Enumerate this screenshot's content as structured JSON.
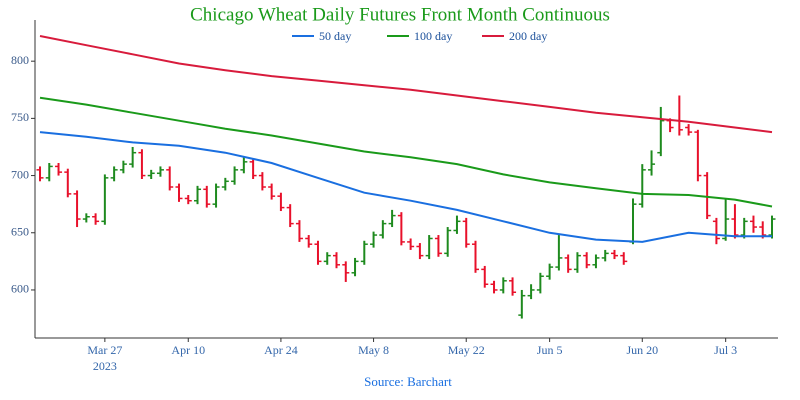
{
  "chart_data": {
    "type": "ohlc",
    "title": "Chicago Wheat Daily Futures Front Month Continuous",
    "source": "Source: Barchart",
    "x_year_label": "2023",
    "x": [
      "2023-03-16",
      "2023-03-17",
      "2023-03-20",
      "2023-03-21",
      "2023-03-22",
      "2023-03-23",
      "2023-03-24",
      "2023-03-27",
      "2023-03-28",
      "2023-03-29",
      "2023-03-30",
      "2023-03-31",
      "2023-04-03",
      "2023-04-04",
      "2023-04-05",
      "2023-04-06",
      "2023-04-10",
      "2023-04-11",
      "2023-04-12",
      "2023-04-13",
      "2023-04-14",
      "2023-04-17",
      "2023-04-18",
      "2023-04-19",
      "2023-04-20",
      "2023-04-21",
      "2023-04-24",
      "2023-04-25",
      "2023-04-26",
      "2023-04-27",
      "2023-04-28",
      "2023-05-01",
      "2023-05-02",
      "2023-05-03",
      "2023-05-04",
      "2023-05-05",
      "2023-05-08",
      "2023-05-09",
      "2023-05-10",
      "2023-05-11",
      "2023-05-12",
      "2023-05-15",
      "2023-05-16",
      "2023-05-17",
      "2023-05-18",
      "2023-05-19",
      "2023-05-22",
      "2023-05-23",
      "2023-05-24",
      "2023-05-25",
      "2023-05-26",
      "2023-05-30",
      "2023-05-31",
      "2023-06-01",
      "2023-06-02",
      "2023-06-05",
      "2023-06-06",
      "2023-06-07",
      "2023-06-08",
      "2023-06-09",
      "2023-06-12",
      "2023-06-13",
      "2023-06-14",
      "2023-06-15",
      "2023-06-16",
      "2023-06-20",
      "2023-06-21",
      "2023-06-22",
      "2023-06-23",
      "2023-06-26",
      "2023-06-27",
      "2023-06-28",
      "2023-06-29",
      "2023-06-30",
      "2023-07-03",
      "2023-07-05",
      "2023-07-06",
      "2023-07-07",
      "2023-07-10",
      "2023-07-11"
    ],
    "open": [
      705,
      698,
      708,
      703,
      684,
      662,
      664,
      660,
      698,
      705,
      710,
      720,
      700,
      702,
      705,
      690,
      680,
      678,
      688,
      675,
      690,
      695,
      705,
      712,
      700,
      690,
      682,
      672,
      658,
      645,
      640,
      625,
      630,
      622,
      615,
      625,
      640,
      648,
      658,
      665,
      642,
      638,
      630,
      645,
      632,
      652,
      660,
      640,
      618,
      605,
      600,
      608,
      578,
      595,
      600,
      612,
      620,
      628,
      618,
      630,
      622,
      628,
      632,
      630,
      642,
      675,
      705,
      720,
      748,
      748,
      742,
      738,
      700,
      660,
      645,
      662,
      648,
      660,
      655,
      648
    ],
    "high": [
      708,
      711,
      711,
      706,
      687,
      667,
      667,
      701,
      708,
      713,
      725,
      723,
      705,
      708,
      708,
      693,
      683,
      691,
      691,
      693,
      698,
      708,
      717,
      715,
      703,
      693,
      685,
      675,
      661,
      648,
      643,
      633,
      633,
      625,
      628,
      643,
      651,
      661,
      670,
      668,
      645,
      641,
      648,
      648,
      655,
      665,
      663,
      643,
      621,
      608,
      611,
      611,
      600,
      605,
      615,
      623,
      648,
      631,
      633,
      633,
      631,
      635,
      635,
      633,
      680,
      710,
      722,
      760,
      750,
      770,
      745,
      740,
      703,
      663,
      680,
      675,
      663,
      665,
      660,
      665
    ],
    "low": [
      695,
      695,
      700,
      681,
      655,
      659,
      657,
      657,
      695,
      702,
      707,
      697,
      697,
      699,
      687,
      677,
      675,
      675,
      672,
      672,
      687,
      692,
      702,
      697,
      687,
      679,
      669,
      655,
      642,
      637,
      622,
      622,
      619,
      607,
      612,
      622,
      637,
      645,
      655,
      639,
      635,
      627,
      627,
      629,
      629,
      649,
      637,
      615,
      602,
      597,
      597,
      595,
      575,
      592,
      597,
      609,
      617,
      615,
      615,
      619,
      619,
      625,
      627,
      622,
      640,
      672,
      700,
      717,
      738,
      735,
      735,
      695,
      662,
      640,
      643,
      645,
      645,
      650,
      645,
      645
    ],
    "close": [
      698,
      708,
      703,
      684,
      662,
      664,
      660,
      698,
      705,
      710,
      720,
      700,
      702,
      705,
      690,
      680,
      678,
      688,
      675,
      690,
      695,
      705,
      712,
      700,
      690,
      682,
      672,
      658,
      645,
      640,
      625,
      630,
      622,
      615,
      625,
      640,
      648,
      658,
      665,
      642,
      638,
      630,
      645,
      632,
      652,
      660,
      640,
      618,
      605,
      600,
      608,
      598,
      595,
      600,
      612,
      620,
      628,
      618,
      630,
      622,
      628,
      632,
      630,
      625,
      675,
      705,
      710,
      748,
      742,
      740,
      738,
      700,
      665,
      645,
      662,
      648,
      660,
      655,
      648,
      662
    ],
    "up_color": "#1e8a1e",
    "down_color": "#e8102a",
    "series": [
      {
        "name": "50 day",
        "color": "#1a6fe0",
        "x": [
          "2023-03-16",
          "2023-03-23",
          "2023-03-30",
          "2023-04-06",
          "2023-04-14",
          "2023-04-21",
          "2023-04-28",
          "2023-05-05",
          "2023-05-12",
          "2023-05-19",
          "2023-05-26",
          "2023-06-05",
          "2023-06-12",
          "2023-06-20",
          "2023-06-27",
          "2023-07-05",
          "2023-07-11"
        ],
        "values": [
          738,
          734,
          729,
          726,
          720,
          711,
          698,
          685,
          678,
          670,
          660,
          650,
          644,
          642,
          650,
          647,
          647
        ]
      },
      {
        "name": "100 day",
        "color": "#1a9a1a",
        "x": [
          "2023-03-16",
          "2023-03-23",
          "2023-03-30",
          "2023-04-06",
          "2023-04-14",
          "2023-04-21",
          "2023-04-28",
          "2023-05-05",
          "2023-05-12",
          "2023-05-19",
          "2023-05-26",
          "2023-06-05",
          "2023-06-12",
          "2023-06-20",
          "2023-06-27",
          "2023-07-05",
          "2023-07-11"
        ],
        "values": [
          768,
          762,
          755,
          748,
          741,
          735,
          728,
          721,
          716,
          710,
          701,
          694,
          689,
          684,
          683,
          679,
          673
        ]
      },
      {
        "name": "200 day",
        "color": "#d81b3c",
        "x": [
          "2023-03-16",
          "2023-03-23",
          "2023-03-30",
          "2023-04-06",
          "2023-04-14",
          "2023-04-21",
          "2023-04-28",
          "2023-05-05",
          "2023-05-12",
          "2023-05-19",
          "2023-05-26",
          "2023-06-05",
          "2023-06-12",
          "2023-06-20",
          "2023-06-27",
          "2023-07-05",
          "2023-07-11"
        ],
        "values": [
          822,
          814,
          806,
          798,
          792,
          787,
          783,
          779,
          775,
          770,
          765,
          760,
          755,
          751,
          747,
          742,
          738
        ]
      }
    ],
    "ylim": [
      558,
      836
    ],
    "yticks": [
      600,
      650,
      700,
      750,
      800
    ],
    "xticks": [
      {
        "value": "2023-03-27",
        "label": "Mar 27"
      },
      {
        "value": "2023-04-10",
        "label": "Apr 10"
      },
      {
        "value": "2023-04-24",
        "label": "Apr 24"
      },
      {
        "value": "2023-05-08",
        "label": "May 8"
      },
      {
        "value": "2023-05-22",
        "label": "May 22"
      },
      {
        "value": "2023-06-05",
        "label": "Jun 5"
      },
      {
        "value": "2023-06-20",
        "label": "Jun 20"
      },
      {
        "value": "2023-07-03",
        "label": "Jul 3"
      }
    ]
  }
}
